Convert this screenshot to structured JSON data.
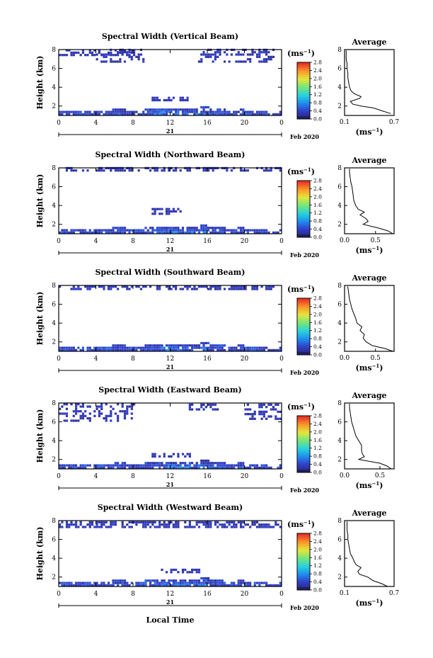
{
  "figure": {
    "ylabel": "Height (km)",
    "xlabel": "Local Time",
    "unit_label": "(ms",
    "unit_exp": "−1",
    "unit_close": ")",
    "avg_title": "Average",
    "date_day": "21",
    "date_label": "Feb 2020",
    "x_ticks": [
      "0",
      "4",
      "8",
      "12",
      "16",
      "20",
      "0"
    ],
    "y_ticks": [
      "2",
      "4",
      "6",
      "8"
    ],
    "cb_ticks": [
      "0.0",
      "0.4",
      "0.8",
      "1.2",
      "1.6",
      "2.0",
      "2.4",
      "2.8"
    ]
  },
  "chart_data": [
    {
      "type": "heatmap",
      "title": "Spectral Width (Vertical Beam)",
      "xlim": [
        0,
        24
      ],
      "ylim": [
        1,
        8
      ],
      "colorbar_range": [
        0,
        2.8
      ],
      "clouds": [
        [
          0,
          8,
          7.3,
          7.9
        ],
        [
          4,
          9,
          6.6,
          7.9
        ],
        [
          15,
          23,
          6.6,
          7.9
        ],
        [
          10,
          14,
          2.5,
          2.9
        ]
      ],
      "average_profile": {
        "xlim": [
          0.1,
          0.7
        ],
        "xticks": [
          "0.1",
          "0.7"
        ],
        "yticks": [
          "2",
          "4",
          "6",
          "8"
        ],
        "height": [
          1.2,
          1.5,
          1.8,
          2.0,
          2.2,
          2.5,
          2.8,
          3.0,
          3.3,
          3.6,
          4.0,
          4.5,
          5.0,
          5.5,
          6.0,
          6.5,
          7.0,
          7.5,
          7.9
        ],
        "value": [
          0.66,
          0.55,
          0.45,
          0.3,
          0.2,
          0.17,
          0.28,
          0.3,
          0.22,
          0.18,
          0.16,
          0.15,
          0.14,
          0.14,
          0.13,
          0.13,
          0.12,
          0.12,
          0.12
        ]
      }
    },
    {
      "type": "heatmap",
      "title": "Spectral Width (Northward Beam)",
      "xlim": [
        0,
        24
      ],
      "ylim": [
        1,
        8
      ],
      "colorbar_range": [
        0,
        2.8
      ],
      "clouds": [
        [
          0,
          24,
          7.6,
          7.9
        ],
        [
          10,
          13,
          3.0,
          3.5
        ]
      ],
      "average_profile": {
        "xlim": [
          0,
          0.8
        ],
        "xticks": [
          "0.0",
          "0.5"
        ],
        "yticks": [
          "2",
          "4",
          "6",
          "8"
        ],
        "height": [
          1.0,
          1.3,
          1.6,
          2.0,
          2.3,
          2.6,
          3.0,
          3.3,
          3.6,
          4.0,
          4.5,
          5.0,
          5.5,
          6.0,
          6.5,
          7.0,
          7.5,
          7.9
        ],
        "value": [
          0.78,
          0.7,
          0.55,
          0.3,
          0.38,
          0.35,
          0.25,
          0.32,
          0.22,
          0.18,
          0.15,
          0.14,
          0.13,
          0.12,
          0.1,
          0.09,
          0.08,
          0.08
        ]
      }
    },
    {
      "type": "heatmap",
      "title": "Spectral Width (Southward Beam)",
      "xlim": [
        0,
        24
      ],
      "ylim": [
        1,
        8
      ],
      "colorbar_range": [
        0,
        2.8
      ],
      "clouds": [
        [
          0,
          23,
          7.5,
          7.9
        ]
      ],
      "average_profile": {
        "xlim": [
          0,
          0.8
        ],
        "xticks": [
          "0.0",
          "0.5"
        ],
        "yticks": [
          "2",
          "4",
          "6",
          "8"
        ],
        "height": [
          1.0,
          1.3,
          1.6,
          2.0,
          2.4,
          2.8,
          3.2,
          3.6,
          4.0,
          4.5,
          5.0,
          5.5,
          6.0,
          6.5,
          7.0,
          7.5,
          7.9
        ],
        "value": [
          0.78,
          0.65,
          0.45,
          0.35,
          0.3,
          0.32,
          0.25,
          0.28,
          0.2,
          0.18,
          0.15,
          0.12,
          0.1,
          0.08,
          0.07,
          0.06,
          0.05
        ]
      }
    },
    {
      "type": "heatmap",
      "title": "Spectral Width (Eastward Beam)",
      "xlim": [
        0,
        24
      ],
      "ylim": [
        1,
        8
      ],
      "colorbar_range": [
        0,
        2.8
      ],
      "clouds": [
        [
          0,
          8,
          6.0,
          7.9
        ],
        [
          14,
          17,
          7.2,
          7.9
        ],
        [
          20,
          24,
          6.2,
          7.9
        ],
        [
          10,
          14,
          2.2,
          2.5
        ]
      ],
      "average_profile": {
        "xlim": [
          0,
          0.7
        ],
        "xticks": [
          "0.0",
          "0.5"
        ],
        "yticks": [
          "2",
          "4",
          "6",
          "8"
        ],
        "height": [
          1.0,
          1.3,
          1.6,
          2.0,
          2.3,
          2.6,
          3.0,
          3.5,
          4.0,
          4.5,
          5.0,
          5.5,
          6.0,
          6.5,
          7.0,
          7.5,
          7.9
        ],
        "value": [
          0.66,
          0.6,
          0.5,
          0.2,
          0.28,
          0.25,
          0.24,
          0.24,
          0.2,
          0.16,
          0.14,
          0.12,
          0.1,
          0.09,
          0.08,
          0.07,
          0.07
        ]
      }
    },
    {
      "type": "heatmap",
      "title": "Spectral Width (Westward Beam)",
      "xlim": [
        0,
        24
      ],
      "ylim": [
        1,
        8
      ],
      "colorbar_range": [
        0,
        2.8
      ],
      "clouds": [
        [
          0,
          24,
          7.2,
          7.9
        ],
        [
          11,
          15,
          2.4,
          2.7
        ]
      ],
      "average_profile": {
        "xlim": [
          0.1,
          0.7
        ],
        "xticks": [
          "0.1",
          "0.7"
        ],
        "yticks": [
          "2",
          "4",
          "6",
          "8"
        ],
        "height": [
          1.0,
          1.3,
          1.6,
          2.0,
          2.3,
          2.6,
          3.0,
          3.3,
          3.6,
          4.0,
          4.5,
          5.0,
          5.5,
          6.0,
          6.5,
          7.0,
          7.5,
          7.9
        ],
        "value": [
          0.62,
          0.55,
          0.45,
          0.38,
          0.28,
          0.26,
          0.3,
          0.24,
          0.22,
          0.2,
          0.17,
          0.16,
          0.15,
          0.14,
          0.14,
          0.13,
          0.13,
          0.13
        ]
      }
    }
  ]
}
